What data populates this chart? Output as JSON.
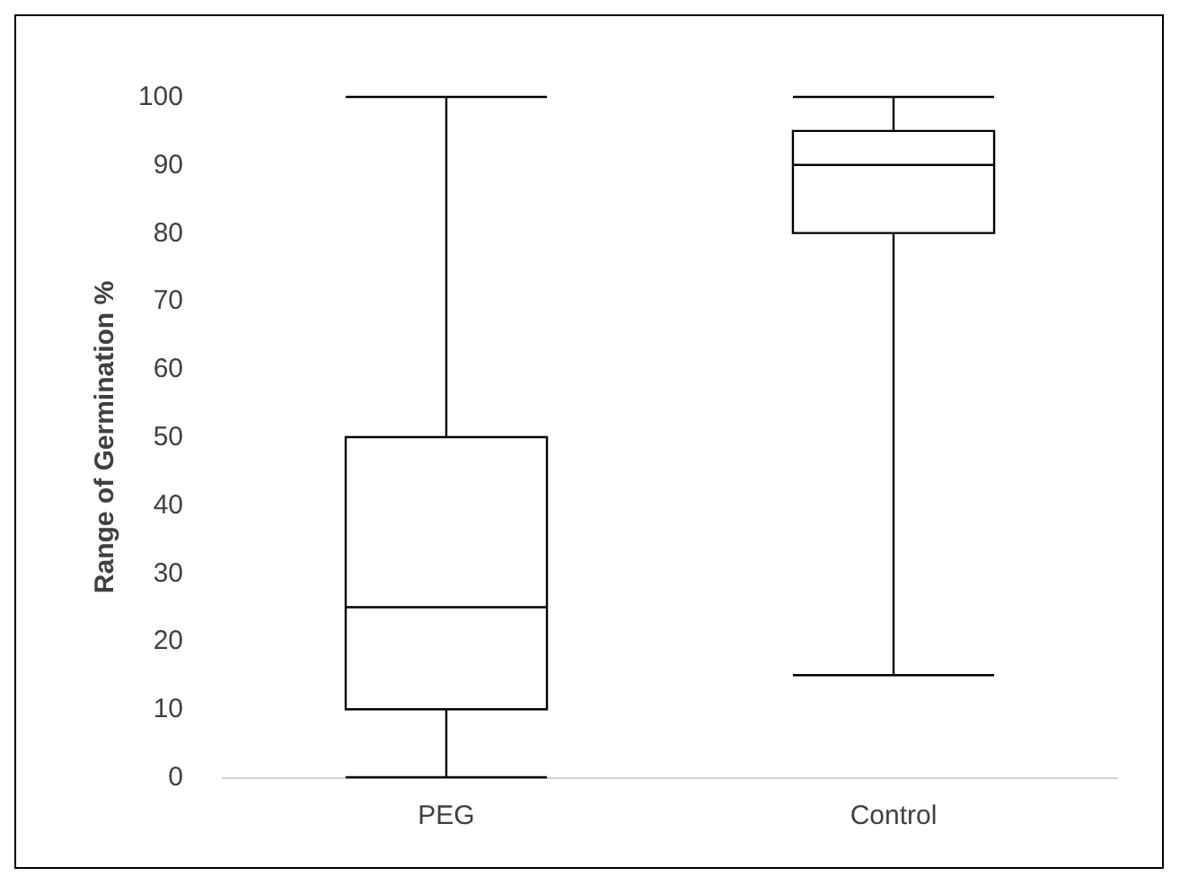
{
  "chart_data": {
    "type": "box",
    "ylabel": "Range of Germination %",
    "categories": [
      "PEG",
      "Control"
    ],
    "color": "#000000",
    "boxes": [
      {
        "low": 0,
        "q1": 10,
        "median": 25,
        "q3": 50,
        "high": 100
      },
      {
        "low": 15,
        "q1": 80,
        "median": 90,
        "q3": 95,
        "high": 100
      }
    ],
    "ylim": [
      0,
      100
    ],
    "yticks": [
      0,
      10,
      20,
      30,
      40,
      50,
      60,
      70,
      80,
      90,
      100
    ],
    "grid": false
  }
}
